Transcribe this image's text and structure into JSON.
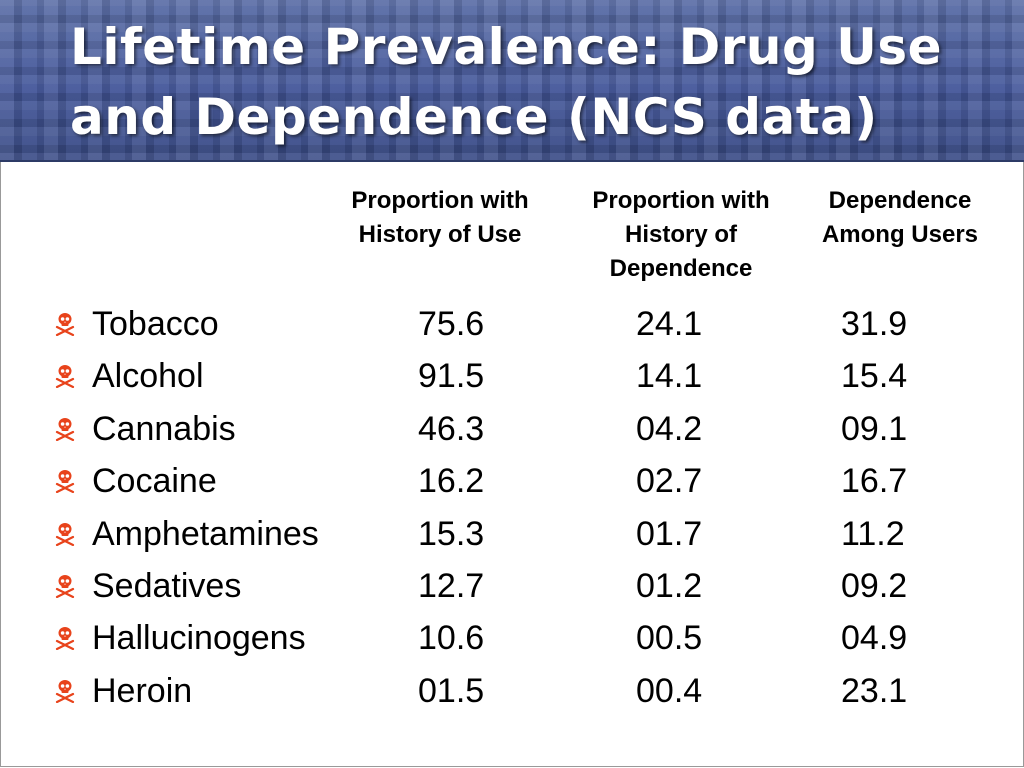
{
  "slide": {
    "title_line1": "Lifetime Prevalence: Drug Use",
    "title_line2": "and Dependence (NCS data)"
  },
  "colors": {
    "header_background": "#3c4f86",
    "title_text": "#ffffff",
    "bullet": "#e8431b",
    "body_text": "#000000"
  },
  "icons": {
    "bullet": "skull-crossbones-icon"
  },
  "chart_data": {
    "type": "table",
    "columns": [
      {
        "line1": "Proportion with",
        "line2": "History of Use",
        "line3": ""
      },
      {
        "line1": "Proportion with",
        "line2": "History of",
        "line3": "Dependence"
      },
      {
        "line1": "Dependence",
        "line2": "Among Users",
        "line3": ""
      }
    ],
    "rows": [
      {
        "drug": "Tobacco",
        "use": "75.6",
        "dependence": "24.1",
        "dependence_among_users": "31.9"
      },
      {
        "drug": "Alcohol",
        "use": "91.5",
        "dependence": "14.1",
        "dependence_among_users": "15.4"
      },
      {
        "drug": "Cannabis",
        "use": "46.3",
        "dependence": "04.2",
        "dependence_among_users": "09.1"
      },
      {
        "drug": "Cocaine",
        "use": "16.2",
        "dependence": "02.7",
        "dependence_among_users": "16.7"
      },
      {
        "drug": "Amphetamines",
        "use": "15.3",
        "dependence": "01.7",
        "dependence_among_users": "11.2"
      },
      {
        "drug": "Sedatives",
        "use": "12.7",
        "dependence": "01.2",
        "dependence_among_users": "09.2"
      },
      {
        "drug": "Hallucinogens",
        "use": "10.6",
        "dependence": "00.5",
        "dependence_among_users": "04.9"
      },
      {
        "drug": "Heroin",
        "use": "01.5",
        "dependence": "00.4",
        "dependence_among_users": "23.1"
      }
    ]
  }
}
